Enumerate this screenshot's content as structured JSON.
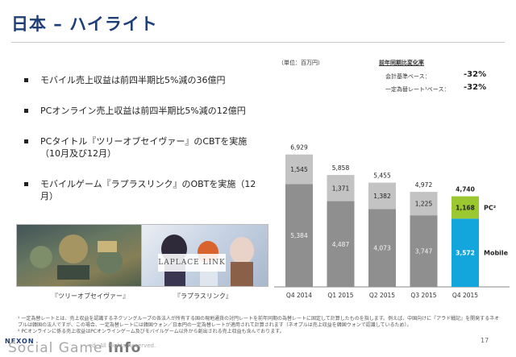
{
  "title": "日本 – ハイライト",
  "bullets": [
    {
      "line1": "モバイル売上収益は前四半期比5%減の36億円",
      "line2": ""
    },
    {
      "line1": "PCオンライン売上収益は前四半期比5%減の12億円",
      "line2": ""
    },
    {
      "line1": "PCタイトル『ツリーオブセイヴァー』のCBTを実施",
      "line2": "（10月及び12月）"
    },
    {
      "line1": "モバイルゲーム『ラプラスリンク』のOBTを実施（12月）",
      "line2": ""
    }
  ],
  "screenshots": [
    {
      "caption": "『ツリーオブセイヴァー』"
    },
    {
      "caption": "『ラプラスリンク』",
      "logo_text": "LAPLACE LINK"
    }
  ],
  "unit_label": "（単位：百万円）",
  "yoy": {
    "header": "前年同期比変化率",
    "rows": [
      {
        "label": "会計基準ベース：",
        "value": "-32%"
      },
      {
        "label": "一定為替レート¹ベース：",
        "value": "-32%"
      }
    ]
  },
  "chart_data": {
    "type": "bar",
    "stacked": true,
    "categories": [
      "Q4 2014",
      "Q1 2015",
      "Q2 2015",
      "Q3 2015",
      "Q4 2015"
    ],
    "series": [
      {
        "name": "Mobile",
        "values": [
          5384,
          4487,
          4073,
          3747,
          3572
        ]
      },
      {
        "name": "PC²",
        "values": [
          1545,
          1371,
          1382,
          1225,
          1168
        ]
      }
    ],
    "totals": [
      6929,
      5858,
      5455,
      4972,
      4740
    ],
    "colors": {
      "mobile_hist": "#8f8f8f",
      "pc_hist": "#c3c3c3",
      "mobile_latest": "#12a6dc",
      "pc_latest": "#9bc830"
    },
    "ylim": [
      0,
      7000
    ]
  },
  "footnotes": [
    "¹ 一定為替レートとは、売上収益を認識するネクソングループの各法人が所有する国の現地通貨の対円レートを前年同期の為替レートに固定して計算したものを指します。例えば、中国向けに『アラド戦記』を開発するネオプルは韓国の法人ですが、この場合、一定為替レートには韓国ウォン／日本円の一定為替レートが適用されて計算されます（ネオプルは売上収益を韓国ウォンで認識しているため）。",
    "² PCオンラインに係る売上収益はPCオンラインゲーム及びモバイルゲーム以外から創出される売上収益も含んでおります。"
  ],
  "page_number": "17",
  "brand": "NEXON",
  "watermark": {
    "part1": "Social Game ",
    "part2": "Info"
  },
  "copyright": "ed. All Rights Reserved."
}
